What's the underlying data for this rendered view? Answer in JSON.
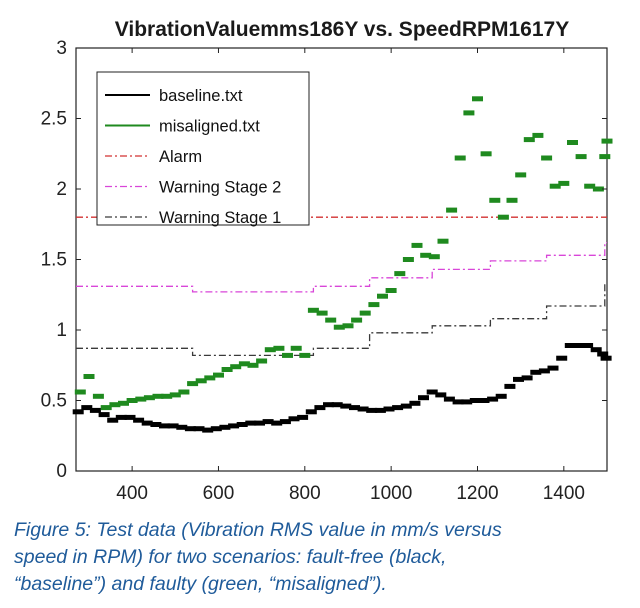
{
  "chart_data": {
    "type": "line",
    "title": "VibrationValuemms186Y vs. SpeedRPM1617Y",
    "xlabel": "",
    "ylabel": "",
    "xlim": [
      270,
      1500
    ],
    "ylim": [
      0,
      3
    ],
    "xticks": [
      400,
      600,
      800,
      1000,
      1200,
      1400
    ],
    "yticks": [
      0,
      0.5,
      1,
      1.5,
      2,
      2.5,
      3
    ],
    "xtick_labels": [
      "400",
      "600",
      "800",
      "1000",
      "1200",
      "1400"
    ],
    "ytick_labels": [
      "0",
      "0.5",
      "1",
      "1.5",
      "2",
      "2.5",
      "3"
    ],
    "legend_position": "top-left",
    "series": [
      {
        "name": "baseline.txt",
        "color": "#000000",
        "style": "markers",
        "x": [
          275,
          295,
          315,
          335,
          355,
          375,
          395,
          415,
          435,
          455,
          475,
          495,
          515,
          535,
          555,
          575,
          595,
          615,
          635,
          655,
          675,
          695,
          715,
          735,
          755,
          775,
          795,
          815,
          835,
          855,
          875,
          895,
          915,
          935,
          955,
          975,
          995,
          1015,
          1035,
          1055,
          1075,
          1095,
          1115,
          1135,
          1155,
          1175,
          1195,
          1215,
          1235,
          1255,
          1275,
          1295,
          1315,
          1335,
          1355,
          1375,
          1395,
          1415,
          1435,
          1455,
          1475,
          1490,
          1498
        ],
        "y": [
          0.42,
          0.45,
          0.43,
          0.4,
          0.36,
          0.38,
          0.38,
          0.36,
          0.34,
          0.33,
          0.32,
          0.32,
          0.31,
          0.3,
          0.3,
          0.29,
          0.3,
          0.31,
          0.32,
          0.33,
          0.34,
          0.34,
          0.35,
          0.34,
          0.35,
          0.37,
          0.38,
          0.42,
          0.45,
          0.47,
          0.47,
          0.46,
          0.45,
          0.44,
          0.43,
          0.43,
          0.44,
          0.45,
          0.46,
          0.48,
          0.52,
          0.56,
          0.54,
          0.51,
          0.49,
          0.49,
          0.5,
          0.5,
          0.51,
          0.53,
          0.6,
          0.65,
          0.66,
          0.7,
          0.71,
          0.73,
          0.8,
          0.89,
          0.89,
          0.89,
          0.86,
          0.83,
          0.8
        ]
      },
      {
        "name": "misaligned.txt",
        "color": "#1f8a1f",
        "style": "markers",
        "x": [
          280,
          300,
          322,
          340,
          360,
          380,
          400,
          420,
          440,
          460,
          480,
          500,
          520,
          540,
          560,
          580,
          600,
          620,
          640,
          660,
          680,
          700,
          720,
          740,
          760,
          780,
          800,
          820,
          840,
          860,
          880,
          900,
          920,
          940,
          960,
          980,
          1000,
          1020,
          1040,
          1060,
          1080,
          1100,
          1120,
          1140,
          1160,
          1180,
          1200,
          1220,
          1240,
          1260,
          1280,
          1300,
          1320,
          1340,
          1360,
          1380,
          1400,
          1420,
          1440,
          1460,
          1480,
          1495,
          1500
        ],
        "y": [
          0.56,
          0.67,
          0.53,
          0.45,
          0.47,
          0.48,
          0.5,
          0.51,
          0.52,
          0.53,
          0.53,
          0.54,
          0.56,
          0.62,
          0.64,
          0.66,
          0.68,
          0.72,
          0.74,
          0.76,
          0.75,
          0.78,
          0.86,
          0.87,
          0.82,
          0.87,
          0.82,
          1.14,
          1.12,
          1.07,
          1.02,
          1.03,
          1.07,
          1.12,
          1.18,
          1.24,
          1.28,
          1.4,
          1.5,
          1.6,
          1.53,
          1.52,
          1.63,
          1.85,
          2.22,
          2.54,
          2.64,
          2.25,
          1.92,
          1.8,
          1.92,
          2.1,
          2.35,
          2.38,
          2.22,
          2.02,
          2.04,
          2.33,
          2.23,
          2.02,
          2.0,
          2.23,
          2.34
        ]
      },
      {
        "name": "Alarm",
        "color": "#d23030",
        "style": "dashdot",
        "x": [
          270,
          1500
        ],
        "y": [
          1.8,
          1.8
        ]
      },
      {
        "name": "Warning Stage 2",
        "color": "#d946d9",
        "style": "dashdot-step",
        "x": [
          270,
          405,
          405,
          540,
          540,
          820,
          820,
          950,
          950,
          1095,
          1095,
          1230,
          1230,
          1360,
          1360,
          1495,
          1495,
          1500
        ],
        "y": [
          1.31,
          1.31,
          1.31,
          1.31,
          1.27,
          1.27,
          1.31,
          1.31,
          1.37,
          1.37,
          1.43,
          1.43,
          1.49,
          1.49,
          1.53,
          1.53,
          1.62,
          1.62
        ]
      },
      {
        "name": "Warning Stage 1",
        "color": "#3a3a3a",
        "style": "dashdot-step",
        "x": [
          270,
          405,
          405,
          540,
          540,
          820,
          820,
          950,
          950,
          1095,
          1095,
          1230,
          1230,
          1360,
          1360,
          1495,
          1495,
          1500
        ],
        "y": [
          0.87,
          0.87,
          0.87,
          0.87,
          0.82,
          0.82,
          0.87,
          0.87,
          0.98,
          0.98,
          1.03,
          1.03,
          1.08,
          1.08,
          1.17,
          1.17,
          1.32,
          1.32
        ]
      }
    ]
  },
  "caption": {
    "line1": "Figure 5: Test data (Vibration RMS value in mm/s versus",
    "line2": "speed in RPM) for two scenarios: fault-free (black,",
    "line3": "“baseline”) and faulty (green, “misaligned”)."
  }
}
